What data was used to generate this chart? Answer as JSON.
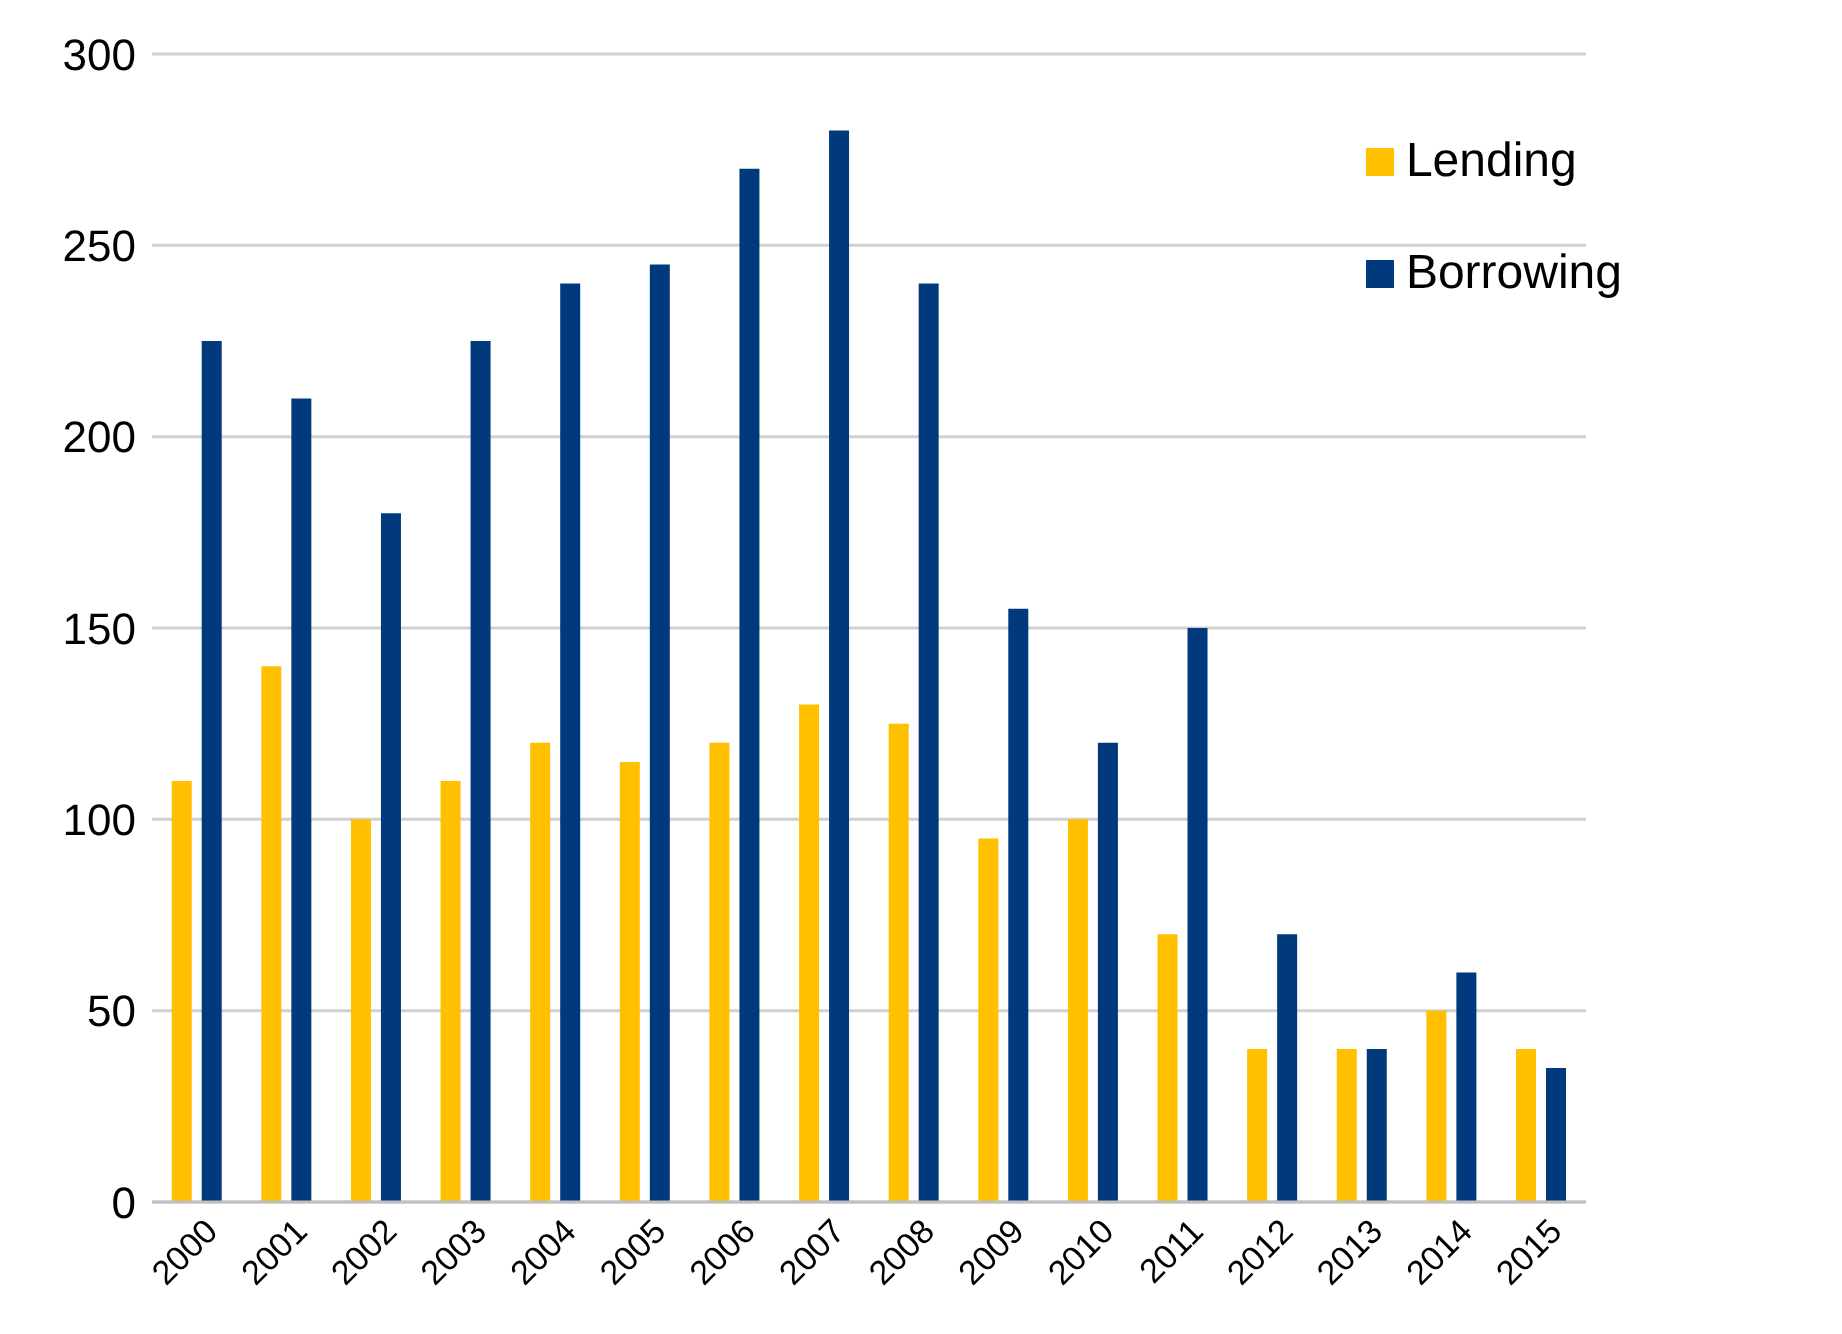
{
  "chart_data": {
    "type": "bar",
    "categories": [
      "2000",
      "2001",
      "2002",
      "2003",
      "2004",
      "2005",
      "2006",
      "2007",
      "2008",
      "2009",
      "2010",
      "2011",
      "2012",
      "2013",
      "2014",
      "2015"
    ],
    "series": [
      {
        "name": "Lending",
        "color": "#ffc000",
        "values": [
          110,
          140,
          100,
          110,
          120,
          115,
          120,
          130,
          125,
          95,
          100,
          70,
          40,
          40,
          50,
          40
        ]
      },
      {
        "name": "Borrowing",
        "color": "#003a7d",
        "values": [
          225,
          210,
          180,
          225,
          240,
          245,
          270,
          280,
          240,
          155,
          120,
          150,
          70,
          40,
          60,
          35
        ]
      }
    ],
    "ylim": [
      0,
      300
    ],
    "yticks": [
      0,
      50,
      100,
      150,
      200,
      250,
      300
    ],
    "grid": "y",
    "legend": "top right"
  }
}
